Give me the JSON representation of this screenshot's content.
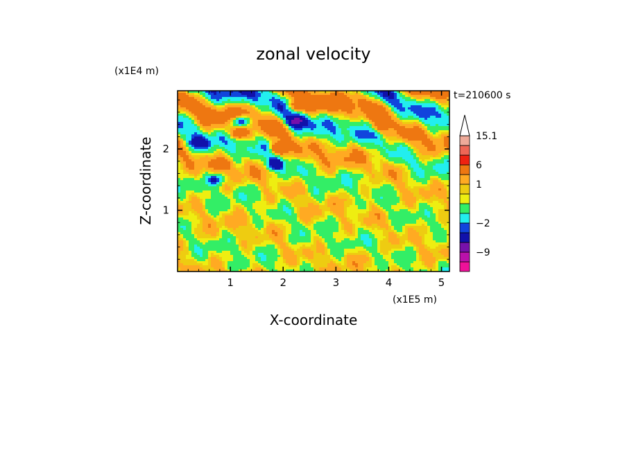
{
  "chart_data": {
    "type": "heatmap",
    "title": "zonal velocity",
    "xlabel": "X-coordinate",
    "ylabel": "Z-coordinate",
    "x_unit": "(x1E5 m)",
    "y_unit": "(x1E4 m)",
    "time_label": "t=210600 s",
    "xlim": [
      0,
      5.15
    ],
    "ylim": [
      0,
      2.95
    ],
    "x_ticks": [
      "1",
      "2",
      "3",
      "4",
      "5"
    ],
    "y_ticks": [
      "1",
      "2"
    ],
    "x_tick_values": [
      1,
      2,
      3,
      4,
      5
    ],
    "y_tick_values": [
      1,
      2
    ],
    "colorbar": {
      "labels": [
        {
          "text": "15.1",
          "value": 15.1
        },
        {
          "text": "6",
          "value": 6
        },
        {
          "text": "1",
          "value": 1
        },
        {
          "text": "−2",
          "value": -2
        },
        {
          "text": "−9",
          "value": -9
        }
      ],
      "levels": [
        {
          "min": -15,
          "max": -12,
          "color": "#ee1199"
        },
        {
          "min": -12,
          "max": -9,
          "color": "#bb11aa"
        },
        {
          "min": -9,
          "max": -6,
          "color": "#7711aa"
        },
        {
          "min": -6,
          "max": -3,
          "color": "#1111aa"
        },
        {
          "min": -3,
          "max": -2,
          "color": "#1144dd"
        },
        {
          "min": -2,
          "max": -1,
          "color": "#22eeee"
        },
        {
          "min": -1,
          "max": 0,
          "color": "#33ee66"
        },
        {
          "min": 0,
          "max": 0.5,
          "color": "#eeee11"
        },
        {
          "min": 0.5,
          "max": 1,
          "color": "#eecc11"
        },
        {
          "min": 1,
          "max": 2,
          "color": "#ffaa22"
        },
        {
          "min": 2,
          "max": 6,
          "color": "#ee7711"
        },
        {
          "min": 6,
          "max": 9,
          "color": "#ee2211"
        },
        {
          "min": 9,
          "max": 12,
          "color": "#ee6655"
        },
        {
          "min": 12,
          "max": 15.1,
          "color": "#eeaa99"
        },
        {
          "min": 15.1,
          "max": 20,
          "color": "#ffcccc"
        }
      ],
      "overflow_arrow_color": "#ffffff"
    },
    "features": [
      {
        "name": "neg-core",
        "x": 1.2,
        "z": 2.45,
        "value": -6
      },
      {
        "name": "neg-core",
        "x": 2.25,
        "z": 2.45,
        "value": -6
      },
      {
        "name": "neg-core",
        "x": 1.85,
        "z": 1.75,
        "value": -5
      },
      {
        "name": "neg-core",
        "x": 0.4,
        "z": 2.1,
        "value": -4
      },
      {
        "name": "neg-core",
        "x": 0.75,
        "z": 1.5,
        "value": -4
      },
      {
        "name": "pos-core",
        "x": 1.15,
        "z": 2.25,
        "value": 5
      },
      {
        "name": "pos-core",
        "x": 1.9,
        "z": 2.0,
        "value": 5
      },
      {
        "name": "pos-core",
        "x": 2.25,
        "z": 2.7,
        "value": 4
      },
      {
        "name": "pos-core",
        "x": 0.85,
        "z": 1.75,
        "value": 3
      },
      {
        "name": "pos-core",
        "x": 3.8,
        "z": 2.35,
        "value": 2
      }
    ]
  }
}
